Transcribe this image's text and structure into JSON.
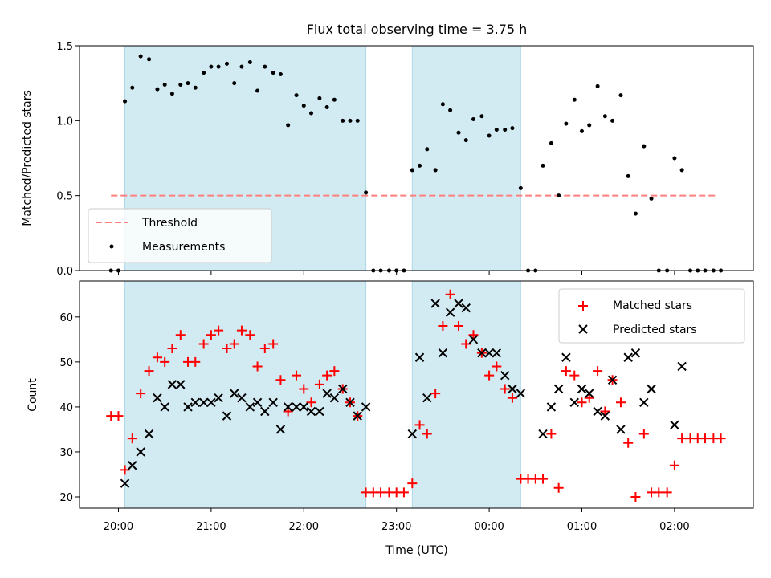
{
  "chart_data": {
    "title": "Flux total observing time = 3.75 h",
    "xlabel": "Time (UTC)",
    "x_ticks": [
      "20:00",
      "21:00",
      "22:00",
      "23:00",
      "00:00",
      "01:00",
      "02:00"
    ],
    "x_tick_hours": [
      0,
      1,
      2,
      3,
      4,
      5,
      6
    ],
    "x_range_hours": [
      -0.42,
      6.85
    ],
    "x_reference": "20:00",
    "observing_windows_hours": [
      [
        0.07,
        2.67
      ],
      [
        3.17,
        4.34
      ]
    ],
    "window_color": "#add8e6",
    "panels": [
      {
        "type": "scatter",
        "ylabel": "Matched/Predicted stars",
        "ylim": [
          0,
          1.5
        ],
        "yticks": [
          "0.0",
          "0.5",
          "1.0",
          "1.5"
        ],
        "ytick_values": [
          0,
          0.5,
          1.0,
          1.5
        ],
        "threshold": {
          "name": "Threshold",
          "y": 0.5,
          "x_range_hours": [
            -0.08,
            6.45
          ],
          "color": "#ff7f7f"
        },
        "series": [
          {
            "name": "Measurements",
            "marker": "dot",
            "color": "#000000",
            "x": [
              -0.08,
              0.0,
              0.07,
              0.15,
              0.24,
              0.33,
              0.42,
              0.5,
              0.58,
              0.67,
              0.75,
              0.83,
              0.92,
              1.0,
              1.08,
              1.17,
              1.25,
              1.33,
              1.42,
              1.5,
              1.58,
              1.67,
              1.75,
              1.83,
              1.92,
              2.0,
              2.08,
              2.17,
              2.25,
              2.33,
              2.42,
              2.5,
              2.58,
              2.67,
              2.75,
              2.83,
              2.92,
              3.0,
              3.08,
              3.17,
              3.25,
              3.33,
              3.42,
              3.5,
              3.58,
              3.67,
              3.75,
              3.83,
              3.92,
              4.0,
              4.08,
              4.17,
              4.25,
              4.34,
              4.42,
              4.5,
              4.58,
              4.67,
              4.75,
              4.83,
              4.92,
              5.0,
              5.08,
              5.17,
              5.25,
              5.33,
              5.42,
              5.5,
              5.58,
              5.67,
              5.75,
              5.83,
              5.92,
              6.0,
              6.08,
              6.17,
              6.25,
              6.33,
              6.42,
              6.5
            ],
            "y": [
              0.0,
              0.0,
              1.13,
              1.22,
              1.43,
              1.41,
              1.21,
              1.24,
              1.18,
              1.24,
              1.25,
              1.22,
              1.32,
              1.36,
              1.36,
              1.38,
              1.25,
              1.36,
              1.39,
              1.2,
              1.36,
              1.32,
              1.31,
              0.97,
              1.17,
              1.1,
              1.05,
              1.15,
              1.09,
              1.14,
              1.0,
              1.0,
              1.0,
              0.52,
              0.0,
              0.0,
              0.0,
              0.0,
              0.0,
              0.67,
              0.7,
              0.81,
              0.67,
              1.11,
              1.07,
              0.92,
              0.87,
              1.01,
              1.03,
              0.9,
              0.94,
              0.94,
              0.95,
              0.55,
              0.0,
              0.0,
              0.7,
              0.85,
              0.5,
              0.98,
              1.14,
              0.93,
              0.97,
              1.23,
              1.03,
              1.0,
              1.17,
              0.63,
              0.38,
              0.83,
              0.48,
              0.0,
              0.0,
              0.75,
              0.67,
              0.0,
              0.0,
              0.0,
              0.0,
              0.0
            ]
          }
        ],
        "legend": {
          "placement": "lower-left",
          "entries": [
            "Threshold",
            "Measurements"
          ]
        }
      },
      {
        "type": "scatter",
        "ylabel": "Count",
        "ylim": [
          17.5,
          68
        ],
        "yticks": [
          "20",
          "30",
          "40",
          "50",
          "60"
        ],
        "ytick_values": [
          20,
          30,
          40,
          50,
          60
        ],
        "series": [
          {
            "name": "Matched stars",
            "marker": "plus",
            "color": "#ff0000",
            "x": [
              -0.08,
              0.0,
              0.07,
              0.15,
              0.24,
              0.33,
              0.42,
              0.5,
              0.58,
              0.67,
              0.75,
              0.83,
              0.92,
              1.0,
              1.08,
              1.17,
              1.25,
              1.33,
              1.42,
              1.5,
              1.58,
              1.67,
              1.75,
              1.83,
              1.92,
              2.0,
              2.08,
              2.17,
              2.25,
              2.33,
              2.42,
              2.5,
              2.58,
              2.67,
              2.75,
              2.83,
              2.92,
              3.0,
              3.08,
              3.17,
              3.25,
              3.33,
              3.42,
              3.5,
              3.58,
              3.67,
              3.75,
              3.83,
              3.92,
              4.0,
              4.08,
              4.17,
              4.25,
              4.34,
              4.42,
              4.5,
              4.58,
              4.67,
              4.75,
              4.83,
              4.92,
              5.0,
              5.08,
              5.17,
              5.25,
              5.33,
              5.42,
              5.5,
              5.58,
              5.67,
              5.75,
              5.83,
              5.92,
              6.0,
              6.08,
              6.17,
              6.25,
              6.33,
              6.42,
              6.5
            ],
            "y": [
              38,
              38,
              26,
              33,
              43,
              48,
              51,
              50,
              53,
              56,
              50,
              50,
              54,
              56,
              57,
              53,
              54,
              57,
              56,
              49,
              53,
              54,
              46,
              39,
              47,
              44,
              41,
              45,
              47,
              48,
              44,
              41,
              38,
              21,
              21,
              21,
              21,
              21,
              21,
              23,
              36,
              34,
              43,
              58,
              65,
              58,
              54,
              56,
              52,
              47,
              49,
              44,
              42,
              24,
              24,
              24,
              24,
              34,
              22,
              48,
              47,
              41,
              42,
              48,
              39,
              46,
              41,
              32,
              20,
              34,
              21,
              21,
              21,
              27,
              33,
              33,
              33,
              33,
              33,
              33
            ]
          },
          {
            "name": "Predicted stars",
            "marker": "x",
            "color": "#000000",
            "x": [
              0.07,
              0.15,
              0.24,
              0.33,
              0.42,
              0.5,
              0.58,
              0.67,
              0.75,
              0.83,
              0.92,
              1.0,
              1.08,
              1.17,
              1.25,
              1.33,
              1.42,
              1.5,
              1.58,
              1.67,
              1.75,
              1.83,
              1.92,
              2.0,
              2.08,
              2.17,
              2.25,
              2.33,
              2.42,
              2.5,
              2.58,
              2.67,
              3.17,
              3.25,
              3.33,
              3.42,
              3.5,
              3.58,
              3.67,
              3.75,
              3.83,
              3.92,
              4.0,
              4.08,
              4.17,
              4.25,
              4.34,
              4.58,
              4.67,
              4.75,
              4.83,
              4.92,
              5.0,
              5.08,
              5.17,
              5.25,
              5.33,
              5.42,
              5.5,
              5.58,
              5.67,
              5.75,
              6.0,
              6.08
            ],
            "y": [
              23,
              27,
              30,
              34,
              42,
              40,
              45,
              45,
              40,
              41,
              41,
              41,
              42,
              38,
              43,
              42,
              40,
              41,
              39,
              41,
              35,
              40,
              40,
              40,
              39,
              39,
              43,
              42,
              44,
              41,
              38,
              40,
              34,
              51,
              42,
              63,
              52,
              61,
              63,
              62,
              55,
              52,
              52,
              52,
              47,
              44,
              43,
              34,
              40,
              44,
              51,
              41,
              44,
              43,
              39,
              38,
              46,
              35,
              51,
              52,
              41,
              44,
              36,
              49
            ]
          }
        ],
        "legend": {
          "placement": "upper-right",
          "entries": [
            "Matched stars",
            "Predicted stars"
          ]
        }
      }
    ]
  }
}
